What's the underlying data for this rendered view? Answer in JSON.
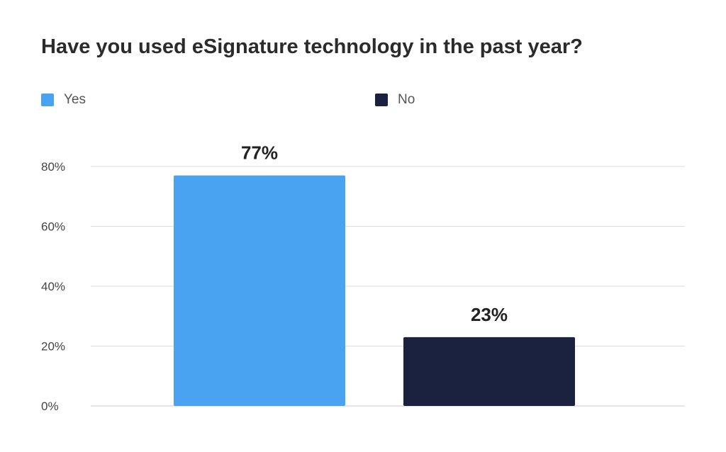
{
  "chart_data": {
    "type": "bar",
    "title": "Have you used eSignature technology in the past year?",
    "categories": [
      "Yes",
      "No"
    ],
    "values": [
      77,
      23
    ],
    "data_labels": [
      "77%",
      "23%"
    ],
    "colors": [
      "#4aa3f0",
      "#1b2240"
    ],
    "legend": [
      {
        "label": "Yes",
        "color": "#4aa3f0"
      },
      {
        "label": "No",
        "color": "#1b2240"
      }
    ],
    "legend_position": "top-left",
    "ylim": [
      0,
      80
    ],
    "yticks": [
      0,
      20,
      40,
      60,
      80
    ],
    "ytick_labels": [
      "0%",
      "20%",
      "40%",
      "60%",
      "80%"
    ],
    "grid": true,
    "gridline_color": "#dddddd",
    "xlabel": "",
    "ylabel": ""
  }
}
